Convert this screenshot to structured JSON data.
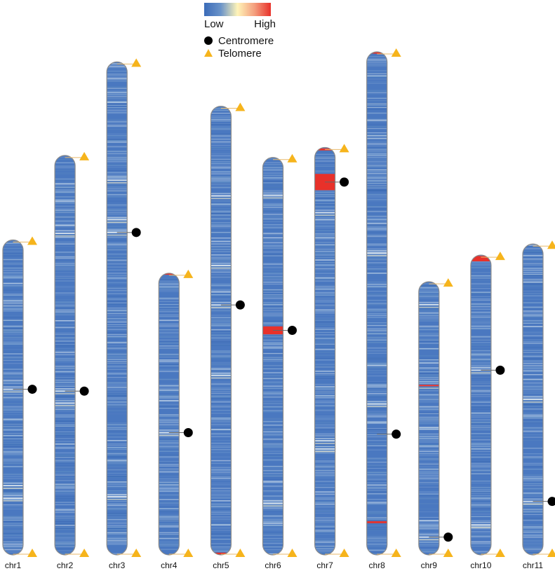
{
  "legend": {
    "low_label": "Low",
    "high_label": "High",
    "gradient_colors": [
      "#3a6bb8",
      "#6b94c9",
      "#fff4b8",
      "#f4a07f",
      "#e8312a"
    ],
    "centromere_label": "Centromere",
    "telomere_label": "Telomere",
    "centromere_color": "#000000",
    "telomere_color": "#f6b41c"
  },
  "density_low_color": "#4a78c0",
  "density_high_color": "#e8312a",
  "chromosomes": [
    {
      "name": "chr1",
      "rel_length": 0.626,
      "centromere_pos": 0.474,
      "hotspots": [
        0.474,
        0.78,
        0.82
      ],
      "red_bands": []
    },
    {
      "name": "chr2",
      "rel_length": 0.794,
      "centromere_pos": 0.59,
      "hotspots": [
        0.195,
        0.59,
        0.62
      ],
      "red_bands": []
    },
    {
      "name": "chr3",
      "rel_length": 0.98,
      "centromere_pos": 0.346,
      "hotspots": [
        0.24,
        0.32,
        0.346,
        0.882
      ],
      "red_bands": []
    },
    {
      "name": "chr4",
      "rel_length": 0.56,
      "centromere_pos": 0.566,
      "hotspots": [
        0.566
      ],
      "red_bands": [
        {
          "pos": 0.003,
          "h": 0.005
        }
      ]
    },
    {
      "name": "chr5",
      "rel_length": 0.892,
      "centromere_pos": 0.443,
      "hotspots": [
        0.2,
        0.355,
        0.443,
        0.6
      ],
      "red_bands": [
        {
          "pos": 0.997,
          "h": 0.004
        }
      ]
    },
    {
      "name": "chr6",
      "rel_length": 0.79,
      "centromere_pos": 0.435,
      "hotspots": [
        0.095,
        0.87
      ],
      "red_bands": [
        {
          "pos": 0.435,
          "h": 0.02
        }
      ]
    },
    {
      "name": "chr7",
      "rel_length": 0.81,
      "centromere_pos": 0.085,
      "hotspots": [
        0.16,
        0.72,
        0.74
      ],
      "red_bands": [
        {
          "pos": 0.085,
          "h": 0.04
        },
        {
          "pos": 0.005,
          "h": 0.005
        }
      ]
    },
    {
      "name": "chr8",
      "rel_length": 1.0,
      "centromere_pos": 0.76,
      "hotspots": [
        0.4,
        0.7
      ],
      "red_bands": [
        {
          "pos": 0.002,
          "h": 0.003
        },
        {
          "pos": 0.935,
          "h": 0.004
        }
      ]
    },
    {
      "name": "chr9",
      "rel_length": 0.543,
      "centromere_pos": 0.935,
      "hotspots": [
        0.084,
        0.38,
        0.935
      ],
      "red_bands": [
        {
          "pos": 0.38,
          "h": 0.005
        }
      ]
    },
    {
      "name": "chr10",
      "rel_length": 0.596,
      "centromere_pos": 0.384,
      "hotspots": [
        0.384,
        0.9
      ],
      "red_bands": [
        {
          "pos": 0.012,
          "h": 0.018
        }
      ]
    },
    {
      "name": "chr11",
      "rel_length": 0.618,
      "centromere_pos": 0.828,
      "hotspots": [
        0.5,
        0.828
      ],
      "red_bands": []
    }
  ]
}
